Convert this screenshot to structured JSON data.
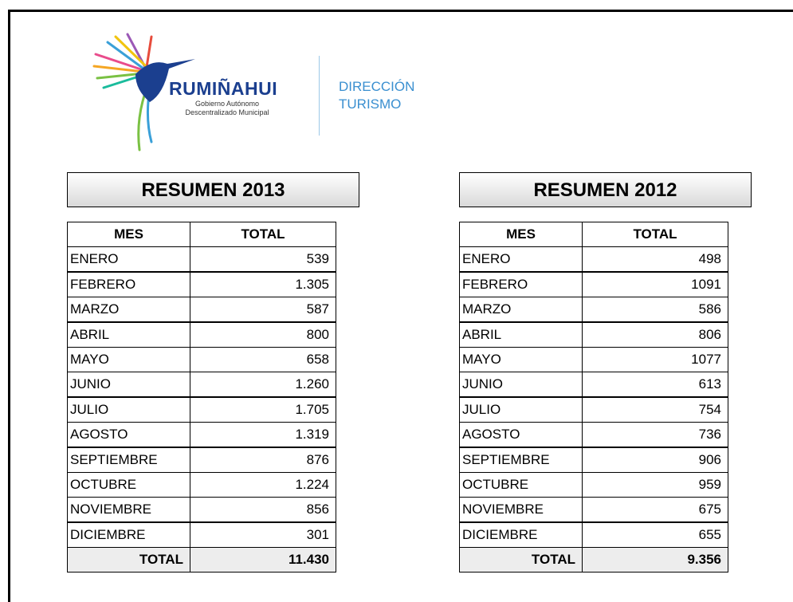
{
  "header": {
    "brand": "RUMIÑAHUI",
    "subtitle_1": "Gobierno Autónomo",
    "subtitle_2": "Descentralizado Municipal",
    "department_1": "DIRECCIÓN",
    "department_2": "TURISMO"
  },
  "tables": [
    {
      "title": "RESUMEN 2013",
      "columns": [
        "MES",
        "TOTAL"
      ],
      "rows": [
        [
          "ENERO",
          "539"
        ],
        [
          "FEBRERO",
          "1.305"
        ],
        [
          "MARZO",
          "587"
        ],
        [
          "ABRIL",
          "800"
        ],
        [
          "MAYO",
          "658"
        ],
        [
          "JUNIO",
          "1.260"
        ],
        [
          "JULIO",
          "1.705"
        ],
        [
          "AGOSTO",
          "1.319"
        ],
        [
          "SEPTIEMBRE",
          "876"
        ],
        [
          "OCTUBRE",
          "1.224"
        ],
        [
          "NOVIEMBRE",
          "856"
        ],
        [
          "DICIEMBRE",
          "301"
        ]
      ],
      "total_label": "TOTAL",
      "total_value": "11.430"
    },
    {
      "title": "RESUMEN 2012",
      "columns": [
        "MES",
        "TOTAL"
      ],
      "rows": [
        [
          "ENERO",
          "498"
        ],
        [
          "FEBRERO",
          "1091"
        ],
        [
          "MARZO",
          "586"
        ],
        [
          "ABRIL",
          "806"
        ],
        [
          "MAYO",
          "1077"
        ],
        [
          "JUNIO",
          "613"
        ],
        [
          "JULIO",
          "754"
        ],
        [
          "AGOSTO",
          "736"
        ],
        [
          "SEPTIEMBRE",
          "906"
        ],
        [
          "OCTUBRE",
          "959"
        ],
        [
          "NOVIEMBRE",
          "675"
        ],
        [
          "DICIEMBRE",
          "655"
        ]
      ],
      "total_label": "TOTAL",
      "total_value": "9.356"
    }
  ]
}
